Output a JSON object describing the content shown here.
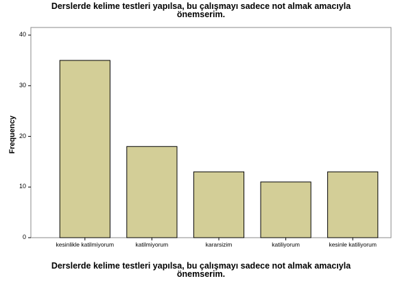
{
  "chart_data": {
    "type": "bar",
    "title": [
      "Derslerde kelime testleri yapılsa, bu çalışmayı sadece not almak amacıyla",
      "önemserim."
    ],
    "x_label": [
      "Derslerde kelime testleri yapılsa, bu çalışmayı sadece not almak amacıyla",
      "önemserim."
    ],
    "y_label": "Frequency",
    "categories": [
      "kesinlikle katilmiyorum",
      "katilmiyorum",
      "kararsizim",
      "katiliyorum",
      "kesinle katiliyorum"
    ],
    "values": [
      35,
      18,
      13,
      11,
      13
    ],
    "color": "#d3ce97",
    "ylim": [
      0,
      41.5
    ],
    "yticks": [
      0,
      10,
      20,
      30,
      40
    ],
    "grid": false
  }
}
